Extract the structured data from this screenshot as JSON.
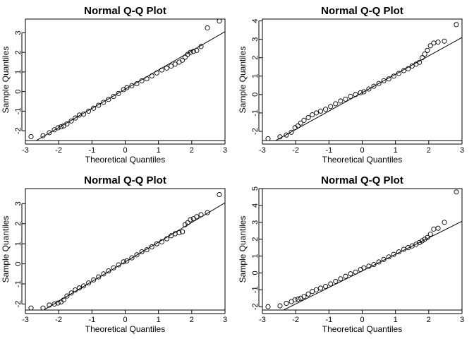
{
  "chart_data": [
    {
      "type": "scatter",
      "title": "Normal Q-Q Plot",
      "xlabel": "Theoretical Quantiles",
      "ylabel": "Sample Quantiles",
      "xlim": [
        -3,
        3
      ],
      "ylim": [
        -2.5,
        3.7
      ],
      "xticks": [
        "-3",
        "-2",
        "-1",
        "0",
        "1",
        "2",
        "3"
      ],
      "yticks": [
        "-2",
        "-1",
        "0",
        "1",
        "2",
        "3"
      ],
      "grid": false,
      "reference_line": {
        "intercept": 0.12,
        "slope": 0.98
      },
      "series": [
        {
          "x": [
            -2.83,
            -2.47,
            -2.28,
            -2.13,
            -2.02,
            -1.93,
            -1.85,
            -1.75,
            -1.62,
            -1.5,
            -1.38,
            -1.25,
            -1.1,
            -0.95,
            -0.8,
            -0.65,
            -0.5,
            -0.35,
            -0.2,
            -0.05,
            0.05,
            0.2,
            0.35,
            0.5,
            0.65,
            0.8,
            0.95,
            1.1,
            1.25,
            1.38,
            1.5,
            1.62,
            1.72,
            1.8,
            1.88,
            1.96,
            2.05,
            2.15,
            2.28,
            2.47,
            2.83
          ],
          "y": [
            -2.3,
            -2.25,
            -2.1,
            -1.95,
            -1.85,
            -1.8,
            -1.75,
            -1.65,
            -1.5,
            -1.35,
            -1.2,
            -1.15,
            -1.0,
            -0.85,
            -0.7,
            -0.55,
            -0.4,
            -0.25,
            -0.1,
            0.1,
            0.2,
            0.3,
            0.4,
            0.55,
            0.65,
            0.8,
            0.95,
            1.1,
            1.2,
            1.3,
            1.4,
            1.5,
            1.6,
            1.75,
            1.9,
            2.0,
            2.05,
            2.1,
            2.3,
            3.25,
            3.6
          ]
        }
      ]
    },
    {
      "type": "scatter",
      "title": "Normal Q-Q Plot",
      "xlabel": "Theoretical Quantiles",
      "ylabel": "Sample Quantiles",
      "xlim": [
        -3,
        3
      ],
      "ylim": [
        -2.5,
        4.1
      ],
      "xticks": [
        "-3",
        "-2",
        "-1",
        "0",
        "1",
        "2",
        "3"
      ],
      "yticks": [
        "-2",
        "-1",
        "0",
        "1",
        "2",
        "3",
        "4"
      ],
      "grid": false,
      "reference_line": {
        "intercept": 0.1,
        "slope": 1.0
      },
      "series": [
        {
          "x": [
            -2.83,
            -2.47,
            -2.28,
            -2.13,
            -2.02,
            -1.93,
            -1.85,
            -1.75,
            -1.62,
            -1.5,
            -1.38,
            -1.25,
            -1.1,
            -0.95,
            -0.8,
            -0.65,
            -0.5,
            -0.35,
            -0.2,
            -0.05,
            0.05,
            0.2,
            0.35,
            0.5,
            0.65,
            0.8,
            0.95,
            1.1,
            1.25,
            1.38,
            1.5,
            1.62,
            1.72,
            1.8,
            1.88,
            1.96,
            2.05,
            2.15,
            2.28,
            2.47,
            2.83
          ],
          "y": [
            -2.4,
            -2.3,
            -2.2,
            -2.05,
            -1.8,
            -1.7,
            -1.55,
            -1.4,
            -1.25,
            -1.1,
            -1.0,
            -0.9,
            -0.8,
            -0.65,
            -0.5,
            -0.35,
            -0.25,
            -0.1,
            0.0,
            0.1,
            0.15,
            0.3,
            0.45,
            0.6,
            0.75,
            0.85,
            1.0,
            1.15,
            1.3,
            1.4,
            1.55,
            1.65,
            1.75,
            2.0,
            2.2,
            2.4,
            2.65,
            2.8,
            2.85,
            2.9,
            3.8
          ]
        }
      ]
    },
    {
      "type": "scatter",
      "title": "Normal Q-Q Plot",
      "xlabel": "Theoretical Quantiles",
      "ylabel": "Sample Quantiles",
      "xlim": [
        -3,
        3
      ],
      "ylim": [
        -2.3,
        3.75
      ],
      "xticks": [
        "-3",
        "-2",
        "-1",
        "0",
        "1",
        "2",
        "3"
      ],
      "yticks": [
        "-2",
        "-1",
        "0",
        "1",
        "2",
        "3"
      ],
      "grid": false,
      "reference_line": {
        "intercept": 0.1,
        "slope": 0.98
      },
      "series": [
        {
          "x": [
            -2.83,
            -2.47,
            -2.28,
            -2.13,
            -2.02,
            -1.93,
            -1.85,
            -1.75,
            -1.62,
            -1.5,
            -1.38,
            -1.25,
            -1.1,
            -0.95,
            -0.8,
            -0.65,
            -0.5,
            -0.35,
            -0.2,
            -0.05,
            0.05,
            0.2,
            0.35,
            0.5,
            0.65,
            0.8,
            0.95,
            1.1,
            1.25,
            1.38,
            1.5,
            1.62,
            1.72,
            1.8,
            1.88,
            1.96,
            2.05,
            2.15,
            2.28,
            2.47,
            2.83
          ],
          "y": [
            -2.2,
            -2.2,
            -2.05,
            -2.0,
            -1.95,
            -1.9,
            -1.8,
            -1.6,
            -1.45,
            -1.3,
            -1.2,
            -1.1,
            -0.95,
            -0.8,
            -0.65,
            -0.5,
            -0.35,
            -0.2,
            -0.05,
            0.1,
            0.15,
            0.3,
            0.45,
            0.6,
            0.7,
            0.85,
            1.0,
            1.1,
            1.25,
            1.4,
            1.5,
            1.55,
            1.6,
            1.95,
            2.05,
            2.2,
            2.25,
            2.35,
            2.45,
            2.55,
            3.45
          ]
        }
      ]
    },
    {
      "type": "scatter",
      "title": "Normal Q-Q Plot",
      "xlabel": "Theoretical Quantiles",
      "ylabel": "Sample Quantiles",
      "xlim": [
        -3,
        3
      ],
      "ylim": [
        -2.2,
        5.0
      ],
      "xticks": [
        "-3",
        "-2",
        "-1",
        "0",
        "1",
        "2",
        "3"
      ],
      "yticks": [
        "-2",
        "-1",
        "0",
        "1",
        "2",
        "3",
        "4",
        "5"
      ],
      "grid": false,
      "reference_line": {
        "intercept": 0.12,
        "slope": 0.98
      },
      "series": [
        {
          "x": [
            -2.83,
            -2.47,
            -2.28,
            -2.13,
            -2.02,
            -1.93,
            -1.85,
            -1.75,
            -1.62,
            -1.5,
            -1.38,
            -1.25,
            -1.1,
            -0.95,
            -0.8,
            -0.65,
            -0.5,
            -0.35,
            -0.2,
            -0.05,
            0.05,
            0.2,
            0.35,
            0.5,
            0.65,
            0.8,
            0.95,
            1.1,
            1.25,
            1.38,
            1.5,
            1.62,
            1.72,
            1.8,
            1.88,
            1.96,
            2.05,
            2.15,
            2.28,
            2.47,
            2.83
          ],
          "y": [
            -2.0,
            -1.95,
            -1.8,
            -1.7,
            -1.6,
            -1.55,
            -1.5,
            -1.4,
            -1.25,
            -1.1,
            -1.0,
            -0.9,
            -0.8,
            -0.65,
            -0.5,
            -0.35,
            -0.2,
            -0.05,
            0.05,
            0.2,
            0.3,
            0.4,
            0.5,
            0.65,
            0.8,
            0.95,
            1.1,
            1.25,
            1.4,
            1.5,
            1.6,
            1.7,
            1.8,
            1.9,
            2.0,
            2.1,
            2.3,
            2.6,
            2.65,
            3.0,
            4.8
          ]
        }
      ]
    }
  ]
}
